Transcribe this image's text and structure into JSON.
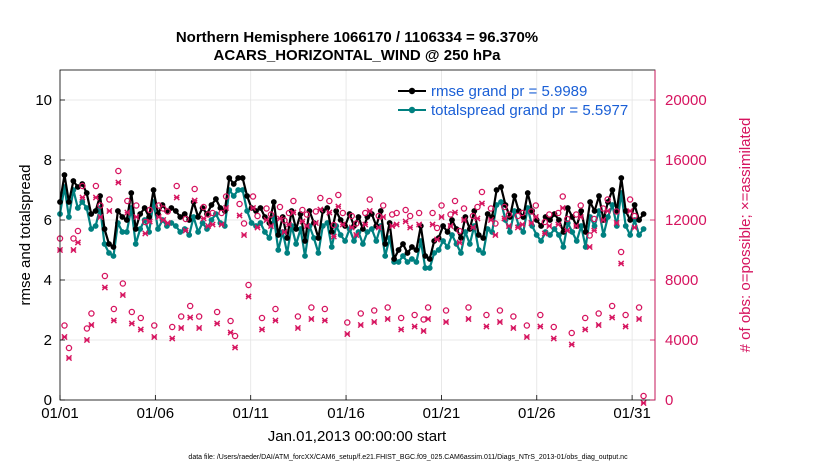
{
  "chart_data": {
    "type": "line",
    "title_line1": "Northern Hemisphere 1066170 / 1106334 = 96.370%",
    "title_line2": "ACARS_HORIZONTAL_WIND @ 250 hPa",
    "xlabel": "Jan.01,2013 00:00:00 start",
    "ylabel_left": "rmse and totalspread",
    "ylabel_right": "# of obs: o=possible; ×=assimilated",
    "footnote": "data file: /Users/raeder/DAI/ATM_forcXX/CAM6_setup/f.e21.FHIST_BGC.f09_025.CAM6assim.011/Diags_NTrS_2013-01/obs_diag_output.nc",
    "xlim": [
      1,
      32.2
    ],
    "ylim_left": [
      0,
      11
    ],
    "ylim_right": [
      0,
      22000
    ],
    "x_ticks": [
      {
        "value": 1,
        "label": "01/01"
      },
      {
        "value": 6,
        "label": "01/06"
      },
      {
        "value": 11,
        "label": "01/11"
      },
      {
        "value": 16,
        "label": "01/16"
      },
      {
        "value": 21,
        "label": "01/21"
      },
      {
        "value": 26,
        "label": "01/26"
      },
      {
        "value": 31,
        "label": "01/31"
      }
    ],
    "y_ticks_left": [
      0,
      2,
      4,
      6,
      8,
      10
    ],
    "y_ticks_right": [
      0,
      4000,
      8000,
      12000,
      16000,
      20000
    ],
    "grid": true,
    "legend_position": "top-right",
    "colors": {
      "rmse": "#000000",
      "totalspread": "#008080",
      "obs": "#d6145f",
      "legend_text": "#1a5fd6"
    },
    "series": [
      {
        "name": "rmse grand pr = 5.9989",
        "key": "rmse",
        "color": "#000000",
        "values": [
          6.6,
          7.5,
          6.6,
          7.3,
          7.1,
          7.2,
          6.9,
          6.2,
          6.3,
          6.8,
          5.7,
          5.2,
          5.1,
          6.3,
          6.1,
          6.0,
          6.9,
          5.7,
          6.2,
          6.4,
          6.1,
          7.0,
          6.2,
          6.5,
          6.3,
          6.4,
          6.3,
          6.1,
          6.2,
          6.0,
          6.6,
          6.1,
          6.4,
          6.2,
          6.5,
          6.7,
          6.4,
          6.3,
          7.4,
          7.2,
          7.4,
          7.4,
          6.8,
          6.4,
          6.3,
          6.4,
          6.1,
          5.9,
          6.6,
          5.5,
          6.1,
          5.4,
          6.3,
          5.7,
          6.2,
          5.3,
          6.3,
          5.9,
          5.4,
          6.3,
          6.4,
          5.6,
          6.3,
          6.0,
          5.8,
          6.2,
          5.8,
          6.1,
          5.7,
          6.1,
          6.2,
          5.8,
          6.3,
          5.2,
          5.9,
          4.7,
          5.0,
          5.2,
          4.9,
          5.1,
          5.0,
          5.8,
          4.8,
          4.7,
          5.3,
          5.4,
          5.8,
          5.6,
          6.0,
          5.7,
          5.4,
          6.1,
          5.7,
          6.3,
          5.5,
          5.4,
          6.2,
          6.1,
          7.0,
          7.1,
          6.5,
          6.1,
          6.8,
          6.3,
          6.1,
          6.9,
          6.3,
          6.0,
          5.8,
          6.1,
          6.0,
          6.2,
          6.0,
          5.6,
          6.4,
          6.1,
          5.8,
          6.3,
          5.6,
          6.6,
          6.3,
          6.8,
          6.0,
          6.6,
          7.0,
          6.3,
          7.4,
          6.3,
          6.0,
          6.5,
          6.0,
          6.2
        ]
      },
      {
        "name": "totalspread grand pr = 5.5977",
        "key": "totalspread",
        "color": "#008080",
        "values": [
          6.2,
          7.1,
          6.1,
          7.0,
          6.4,
          6.6,
          6.4,
          5.7,
          5.8,
          6.4,
          5.2,
          4.9,
          4.8,
          5.9,
          5.6,
          5.6,
          6.4,
          5.2,
          5.7,
          6.0,
          5.6,
          6.6,
          5.7,
          6.0,
          5.8,
          5.9,
          5.8,
          5.6,
          5.7,
          5.5,
          6.1,
          5.6,
          5.9,
          5.7,
          6.0,
          6.2,
          5.9,
          5.8,
          7.0,
          6.8,
          7.0,
          7.0,
          6.3,
          5.9,
          5.8,
          5.9,
          5.6,
          5.4,
          6.1,
          5.0,
          5.6,
          4.9,
          5.8,
          5.2,
          5.7,
          4.8,
          5.8,
          5.4,
          4.9,
          5.8,
          5.9,
          5.1,
          5.8,
          5.5,
          5.3,
          5.7,
          5.3,
          5.6,
          5.2,
          5.6,
          5.7,
          5.3,
          5.8,
          4.8,
          5.4,
          4.6,
          4.6,
          4.8,
          4.6,
          4.7,
          4.6,
          5.3,
          4.4,
          4.4,
          4.9,
          5.0,
          5.3,
          5.1,
          5.5,
          5.2,
          4.9,
          5.6,
          5.2,
          5.8,
          5.0,
          4.9,
          5.7,
          5.6,
          6.5,
          6.6,
          6.0,
          5.6,
          6.3,
          5.8,
          5.6,
          6.4,
          5.8,
          5.5,
          5.3,
          5.6,
          5.5,
          5.7,
          5.5,
          5.1,
          5.9,
          5.6,
          5.3,
          5.8,
          5.1,
          6.1,
          5.8,
          6.3,
          5.5,
          6.1,
          6.5,
          5.8,
          6.9,
          5.8,
          5.5,
          6.0,
          5.5,
          5.7
        ]
      }
    ],
    "obs_possible": {
      "name": "o=possible",
      "values": [
        10500,
        4700,
        3200,
        10500,
        11000,
        14000,
        4500,
        5500,
        14000,
        12700,
        8000,
        13100,
        5800,
        15000,
        7500,
        13000,
        5600,
        12700,
        5200,
        11600,
        12400,
        4700,
        12700,
        12500,
        12300,
        4600,
        14000,
        5300,
        11800,
        6000,
        13800,
        5300,
        12600,
        12100,
        12200,
        5600,
        12200,
        13300,
        5000,
        4000,
        12800,
        11500,
        7400,
        13300,
        12000,
        5200,
        12500,
        12100,
        5800,
        12600,
        11700,
        12200,
        13000,
        5300,
        12400,
        12100,
        5900,
        12300,
        13200,
        5800,
        13000,
        11400,
        13400,
        12200,
        4900,
        12000,
        11500,
        5500,
        12200,
        13100,
        5700,
        12000,
        12700,
        5900,
        12100,
        12200,
        5200,
        12400,
        12000,
        5400,
        12200,
        5100,
        5900,
        12200,
        11200,
        12700,
        5700,
        12100,
        13000,
        11000,
        12500,
        5900,
        12000,
        12600,
        13600,
        5400,
        12500,
        11500,
        5700,
        12600,
        12100,
        5300,
        12000,
        12200,
        4700,
        12300,
        12700,
        5400,
        11600,
        12100,
        4600,
        12200,
        13300,
        11800,
        4200,
        12100,
        12700,
        5200,
        10700,
        11800,
        5500,
        12500,
        13100,
        6000,
        12300,
        9600,
        5400,
        13100,
        12000,
        5900,
        0
      ]
    },
    "obs_assimilated": {
      "name": "×=assimilated",
      "values": [
        10200,
        4400,
        3000,
        10200,
        10700,
        13700,
        4200,
        5200,
        13700,
        12400,
        7700,
        12800,
        5500,
        14700,
        7200,
        12700,
        5300,
        12400,
        4900,
        11300,
        12100,
        4400,
        12400,
        12200,
        12000,
        4300,
        13700,
        5000,
        11500,
        5700,
        13500,
        5000,
        12300,
        11800,
        11900,
        5300,
        11900,
        13000,
        4700,
        3700,
        12500,
        11200,
        7100,
        13000,
        11700,
        4900,
        12200,
        11800,
        5500,
        12300,
        11400,
        11900,
        12700,
        5000,
        12100,
        11800,
        5600,
        12000,
        12900,
        5500,
        12700,
        11100,
        13100,
        11900,
        4600,
        11700,
        11200,
        5200,
        11900,
        12800,
        5400,
        11700,
        12400,
        5600,
        11800,
        11900,
        4900,
        12100,
        11700,
        5100,
        11900,
        4800,
        5600,
        11900,
        10900,
        12400,
        5400,
        11800,
        12700,
        10700,
        12200,
        5600,
        11700,
        12300,
        13300,
        5100,
        12200,
        11200,
        5400,
        12300,
        11800,
        5000,
        11700,
        11900,
        4400,
        12000,
        12400,
        5100,
        11300,
        11800,
        4300,
        11900,
        13000,
        11500,
        3900,
        11800,
        12400,
        4900,
        10400,
        11500,
        5200,
        12200,
        12800,
        5700,
        12000,
        9300,
        5100,
        12800,
        11700,
        5600,
        0
      ]
    }
  }
}
